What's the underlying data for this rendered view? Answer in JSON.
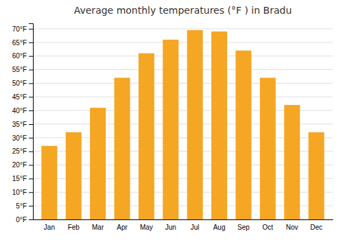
{
  "chart_data": {
    "type": "bar",
    "title": "Average monthly temperatures (°F ) in Bradu",
    "categories": [
      "Jan",
      "Feb",
      "Mar",
      "Apr",
      "May",
      "Jun",
      "Jul",
      "Aug",
      "Sep",
      "Oct",
      "Nov",
      "Dec"
    ],
    "values": [
      27,
      32,
      41,
      52,
      61,
      66,
      69.5,
      69,
      62,
      52,
      42,
      32
    ],
    "color": "#F5A623",
    "ylim": [
      0,
      72
    ],
    "yticks": [
      {
        "value": 0,
        "label": "0°F"
      },
      {
        "value": 5,
        "label": "5°F"
      },
      {
        "value": 10,
        "label": "10°F"
      },
      {
        "value": 15,
        "label": "15°F"
      },
      {
        "value": 20,
        "label": "20°F"
      },
      {
        "value": 25,
        "label": "25°F"
      },
      {
        "value": 30,
        "label": "30°F"
      },
      {
        "value": 35,
        "label": "35°F"
      },
      {
        "value": 40,
        "label": "40°F"
      },
      {
        "value": 45,
        "label": "45°F"
      },
      {
        "value": 50,
        "label": "50°F"
      },
      {
        "value": 55,
        "label": "55°F"
      },
      {
        "value": 60,
        "label": "60°F"
      },
      {
        "value": 65,
        "label": "65°F"
      },
      {
        "value": 70,
        "label": "70°F"
      }
    ],
    "grid": true
  }
}
